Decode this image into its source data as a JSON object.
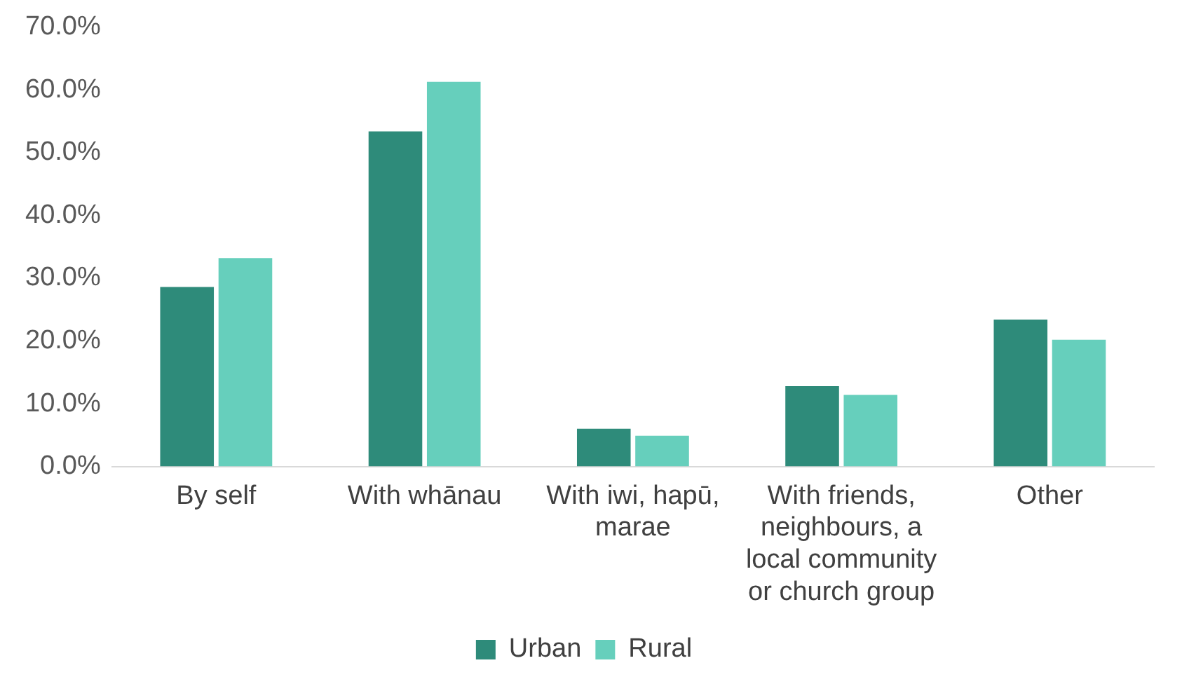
{
  "chart_data": {
    "type": "bar",
    "categories": [
      "By self",
      "With whānau",
      "With iwi, hapū, marae",
      "With friends, neighbours, a local community or church group",
      "Other"
    ],
    "series": [
      {
        "name": "Urban",
        "color": "#2e8b7a",
        "values": [
          28.6,
          53.4,
          6.0,
          12.8,
          23.4
        ]
      },
      {
        "name": "Rural",
        "color": "#66cfbc",
        "values": [
          33.2,
          61.3,
          4.9,
          11.4,
          20.2
        ]
      }
    ],
    "ylim": [
      0,
      70
    ],
    "yticks": [
      {
        "value": 0,
        "label": "0.0%"
      },
      {
        "value": 10,
        "label": "10.0%"
      },
      {
        "value": 20,
        "label": "20.0%"
      },
      {
        "value": 30,
        "label": "30.0%"
      },
      {
        "value": 40,
        "label": "40.0%"
      },
      {
        "value": 50,
        "label": "50.0%"
      },
      {
        "value": 60,
        "label": "60.0%"
      },
      {
        "value": 70,
        "label": "70.0%"
      }
    ],
    "grid": false,
    "legend": "bottom"
  }
}
